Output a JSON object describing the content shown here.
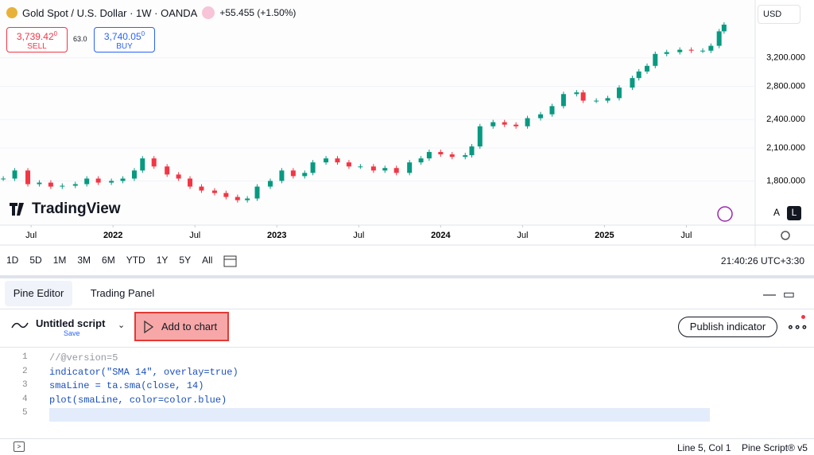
{
  "header": {
    "symbol": "Gold Spot / U.S. Dollar · 1W · OANDA",
    "change": "+55.455 (+1.50%)",
    "sell_price": "3,739.42",
    "sell_frac": "0",
    "sell_label": "SELL",
    "spread": "63.0",
    "buy_price": "3,740.05",
    "buy_frac": "0",
    "buy_label": "BUY",
    "currency": "USD"
  },
  "chart_data": {
    "type": "candlestick",
    "scale": "log",
    "x": [
      2021.33,
      2021.4,
      2021.48,
      2021.55,
      2021.62,
      2021.69,
      2021.77,
      2021.84,
      2021.91,
      2021.99,
      2022.06,
      2022.13,
      2022.18,
      2022.25,
      2022.33,
      2022.4,
      2022.47,
      2022.54,
      2022.62,
      2022.69,
      2022.76,
      2022.82,
      2022.88,
      2022.96,
      2023.03,
      2023.1,
      2023.17,
      2023.22,
      2023.3,
      2023.37,
      2023.44,
      2023.51,
      2023.59,
      2023.66,
      2023.73,
      2023.81,
      2023.88,
      2023.93,
      2024.0,
      2024.07,
      2024.15,
      2024.19,
      2024.24,
      2024.32,
      2024.39,
      2024.46,
      2024.53,
      2024.61,
      2024.68,
      2024.75,
      2024.83,
      2024.87,
      2024.95,
      2025.02,
      2025.09,
      2025.17,
      2025.21,
      2025.26,
      2025.31,
      2025.38,
      2025.46,
      2025.53,
      2025.6,
      2025.65,
      2025.7,
      2025.73
    ],
    "values": [
      1820,
      1890,
      1773,
      1786,
      1753,
      1760,
      1773,
      1820,
      1786,
      1800,
      1820,
      1890,
      2000,
      1926,
      1855,
      1820,
      1753,
      1721,
      1701,
      1670,
      1645,
      1658,
      1753,
      1800,
      1890,
      1841,
      1869,
      1963,
      2000,
      1963,
      1926,
      1926,
      1890,
      1912,
      1869,
      1963,
      2000,
      2061,
      2038,
      2014,
      2030,
      2115,
      2324,
      2369,
      2342,
      2324,
      2414,
      2458,
      2554,
      2702,
      2723,
      2620,
      2620,
      2651,
      2785,
      2912,
      3003,
      3083,
      3260,
      3287,
      3324,
      3310,
      3310,
      3386,
      3623,
      3739
    ],
    "up_color": "#089981",
    "down_color": "#f23645",
    "xlim": [
      2021.31,
      2025.92
    ],
    "xticks": [
      {
        "value": 2021.5,
        "label": "Jul"
      },
      2022,
      {
        "value": 2022.5,
        "label": "Jul"
      },
      2023,
      {
        "value": 2023.5,
        "label": "Jul"
      },
      2024,
      {
        "value": 2024.5,
        "label": "Jul"
      },
      2025,
      {
        "value": 2025.5,
        "label": "Jul"
      }
    ],
    "ylim": [
      1464,
      4195
    ],
    "yticks": [
      {
        "value": 1800,
        "label": "1,800.000"
      },
      {
        "value": 2100,
        "label": "2,100.000"
      },
      {
        "value": 2400,
        "label": "2,400.000"
      },
      {
        "value": 2800,
        "label": "2,800.000"
      },
      {
        "value": 3200,
        "label": "3,200.000"
      }
    ],
    "watermark": "TradingView"
  },
  "chart_buttons": [
    "A",
    "L"
  ],
  "toolbar": {
    "ranges": [
      "1D",
      "5D",
      "1M",
      "3M",
      "6M",
      "YTD",
      "1Y",
      "5Y",
      "All"
    ],
    "clock": "21:40:26 UTC+3:30"
  },
  "tabs": [
    "Pine Editor",
    "Trading Panel"
  ],
  "editor": {
    "script_name": "Untitled script",
    "save": "Save",
    "add_button": "Add to chart",
    "publish": "Publish indicator",
    "lines": [
      "//@version=5",
      "indicator(\"SMA 14\", overlay=true)",
      "smaLine = ta.sma(close, 14)",
      "plot(smaLine, color=color.blue)",
      ""
    ],
    "line_numbers": [
      "1",
      "2",
      "3",
      "4",
      "5"
    ]
  },
  "status": {
    "position": "Line 5, Col 1",
    "language": "Pine Script® v5"
  }
}
